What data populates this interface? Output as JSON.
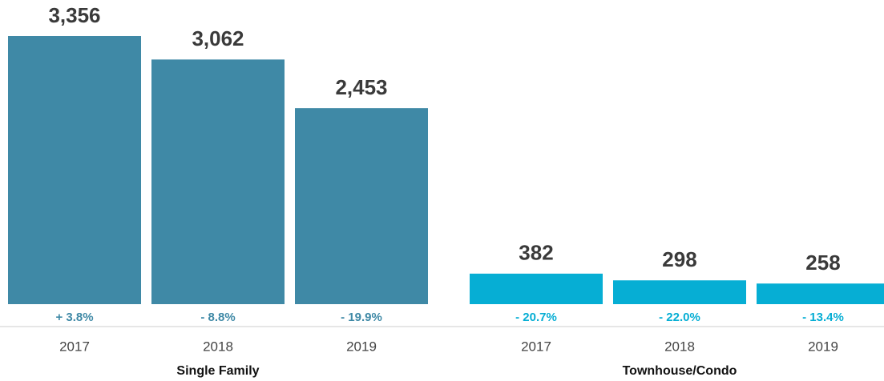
{
  "chart_data": {
    "type": "bar",
    "groups": [
      {
        "name": "Single Family",
        "color": "#3f89a6",
        "categories": [
          "2017",
          "2018",
          "2019"
        ],
        "values": [
          3356,
          3062,
          2453
        ],
        "value_labels": [
          "3,356",
          "3,062",
          "2,453"
        ],
        "changes": [
          "+ 3.8%",
          "- 8.8%",
          "- 19.9%"
        ]
      },
      {
        "name": "Townhouse/Condo",
        "color": "#06aed4",
        "categories": [
          "2017",
          "2018",
          "2019"
        ],
        "values": [
          382,
          298,
          258
        ],
        "value_labels": [
          "382",
          "298",
          "258"
        ],
        "changes": [
          "- 20.7%",
          "- 22.0%",
          "- 13.4%"
        ]
      }
    ]
  }
}
